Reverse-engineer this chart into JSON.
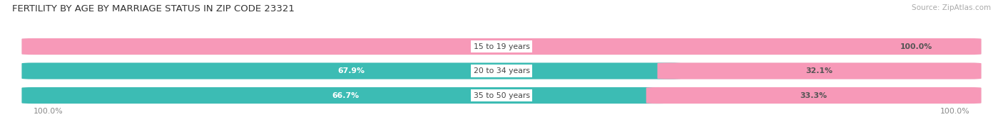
{
  "title": "FERTILITY BY AGE BY MARRIAGE STATUS IN ZIP CODE 23321",
  "source": "Source: ZipAtlas.com",
  "categories": [
    "15 to 19 years",
    "20 to 34 years",
    "35 to 50 years"
  ],
  "married_pct": [
    0.0,
    67.9,
    66.7
  ],
  "unmarried_pct": [
    100.0,
    32.1,
    33.3
  ],
  "married_color": "#3cbcb4",
  "unmarried_color": "#f799b8",
  "bar_bg_color": "#e8e8e8",
  "bar_height": 0.62,
  "bar_gap": 0.18,
  "title_fontsize": 9.5,
  "pct_fontsize": 7.8,
  "source_fontsize": 7.5,
  "category_fontsize": 7.8,
  "legend_fontsize": 8.5,
  "xlim_left": -1.05,
  "xlim_right": 1.05
}
